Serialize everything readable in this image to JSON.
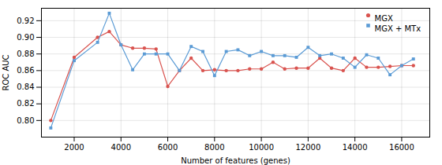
{
  "chart_data": {
    "type": "line",
    "x": [
      1000,
      2000,
      3000,
      3500,
      4000,
      4500,
      5000,
      5500,
      6000,
      6500,
      7000,
      7500,
      8000,
      8500,
      9000,
      9500,
      10000,
      10500,
      11000,
      11500,
      12000,
      12500,
      13000,
      13500,
      14000,
      14500,
      15000,
      15500,
      16000,
      16500
    ],
    "series": [
      {
        "name": "MGX",
        "color": "#d9534f",
        "marker": "circle",
        "values": [
          0.8,
          0.876,
          0.9,
          0.907,
          0.891,
          0.887,
          0.887,
          0.886,
          0.841,
          0.86,
          0.875,
          0.86,
          0.861,
          0.86,
          0.86,
          0.862,
          0.862,
          0.87,
          0.862,
          0.863,
          0.863,
          0.875,
          0.863,
          0.86,
          0.875,
          0.864,
          0.864,
          0.865,
          0.866,
          0.866
        ]
      },
      {
        "name": "MGX + MTx",
        "color": "#5b9bd5",
        "marker": "square",
        "values": [
          0.791,
          0.872,
          0.894,
          0.929,
          0.891,
          0.861,
          0.88,
          0.88,
          0.88,
          0.86,
          0.889,
          0.883,
          0.854,
          0.883,
          0.885,
          0.878,
          0.883,
          0.878,
          0.878,
          0.876,
          0.888,
          0.878,
          0.88,
          0.875,
          0.864,
          0.879,
          0.875,
          0.855,
          0.866,
          0.874
        ]
      }
    ],
    "xlabel": "Number of features (genes)",
    "ylabel": "ROC AUC",
    "xlim": [
      600,
      17200
    ],
    "xticks": [
      2000,
      4000,
      6000,
      8000,
      10000,
      12000,
      14000,
      16000
    ],
    "ylim": [
      0.78,
      0.935
    ],
    "yticks": [
      {
        "value": 0.8,
        "label": "0.80"
      },
      0.82,
      0.84,
      0.86,
      0.88,
      {
        "value": 0.9,
        "label": "0.90"
      },
      0.92
    ],
    "grid": true,
    "legend": "top-right"
  }
}
